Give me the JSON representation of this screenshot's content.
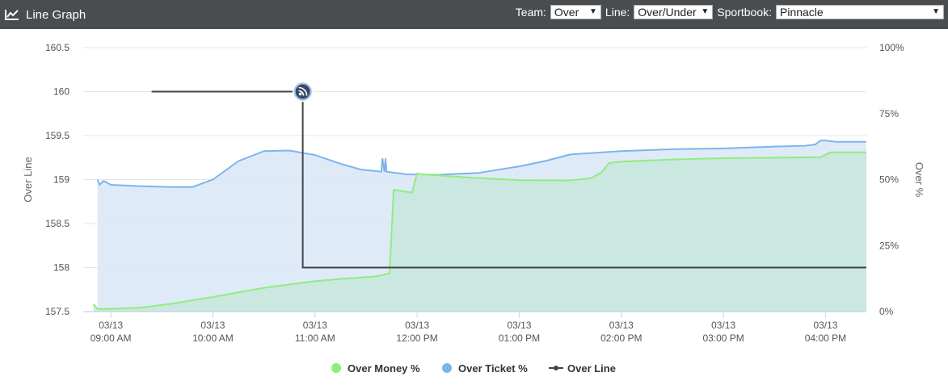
{
  "header": {
    "title": "Line Graph",
    "team_label": "Team:",
    "team_value": "Over",
    "line_label": "Line:",
    "line_value": "Over/Under",
    "sportsbook_label": "Sportbook:",
    "sportsbook_value": "Pinnacle"
  },
  "chart_data": {
    "type": "line",
    "left_axis": {
      "title": "Over Line",
      "min": 157.5,
      "max": 160.5,
      "ticks": [
        "157.5",
        "158",
        "158.5",
        "159",
        "159.5",
        "160",
        "160.5"
      ]
    },
    "right_axis": {
      "title": "Over %",
      "min": 0,
      "max": 100,
      "ticks": [
        "0%",
        "25%",
        "50%",
        "75%",
        "100%"
      ]
    },
    "x_axis": {
      "unit": "hours",
      "range": [
        8.73,
        16.4
      ],
      "ticks": [
        {
          "v": 9,
          "d": "03/13",
          "t": "09:00 AM"
        },
        {
          "v": 10,
          "d": "03/13",
          "t": "10:00 AM"
        },
        {
          "v": 11,
          "d": "03/13",
          "t": "11:00 AM"
        },
        {
          "v": 12,
          "d": "03/13",
          "t": "12:00 PM"
        },
        {
          "v": 13,
          "d": "03/13",
          "t": "01:00 PM"
        },
        {
          "v": 14,
          "d": "03/13",
          "t": "02:00 PM"
        },
        {
          "v": 15,
          "d": "03/13",
          "t": "03:00 PM"
        },
        {
          "v": 16,
          "d": "03/13",
          "t": "04:00 PM"
        }
      ]
    },
    "series": [
      {
        "name": "Over Ticket %",
        "axis": "right",
        "color": "#7cb5ec",
        "fill": "#dce8f8",
        "points": [
          [
            8.87,
            50
          ],
          [
            8.89,
            48
          ],
          [
            8.93,
            49.5
          ],
          [
            9.0,
            48
          ],
          [
            9.3,
            47.5
          ],
          [
            9.6,
            47.2
          ],
          [
            9.8,
            47.2
          ],
          [
            10.0,
            50
          ],
          [
            10.25,
            57
          ],
          [
            10.5,
            60.8
          ],
          [
            10.75,
            61
          ],
          [
            11.0,
            59.3
          ],
          [
            11.25,
            56
          ],
          [
            11.45,
            53.8
          ],
          [
            11.65,
            53
          ],
          [
            11.66,
            58
          ],
          [
            11.68,
            53
          ],
          [
            11.69,
            58
          ],
          [
            11.7,
            53
          ],
          [
            11.9,
            52
          ],
          [
            12.2,
            51.8
          ],
          [
            12.6,
            52.5
          ],
          [
            13.0,
            55
          ],
          [
            13.25,
            57
          ],
          [
            13.5,
            59.5
          ],
          [
            14.0,
            60.8
          ],
          [
            14.5,
            61.5
          ],
          [
            15.0,
            61.8
          ],
          [
            15.5,
            62.5
          ],
          [
            15.8,
            62.8
          ],
          [
            15.9,
            63.3
          ],
          [
            15.95,
            64.8
          ],
          [
            16.0,
            64.8
          ],
          [
            16.1,
            64.3
          ],
          [
            16.4,
            64.3
          ]
        ]
      },
      {
        "name": "Over Money %",
        "axis": "right",
        "color": "#90ed7d",
        "fill": "#c8e8dc",
        "points": [
          [
            8.83,
            2.8
          ],
          [
            8.87,
            1
          ],
          [
            9.0,
            1
          ],
          [
            9.3,
            1.5
          ],
          [
            9.6,
            3
          ],
          [
            10.0,
            5.5
          ],
          [
            10.5,
            9
          ],
          [
            11.0,
            11.5
          ],
          [
            11.3,
            12.5
          ],
          [
            11.6,
            13.3
          ],
          [
            11.73,
            14.5
          ],
          [
            11.77,
            46
          ],
          [
            11.8,
            46
          ],
          [
            11.95,
            45
          ],
          [
            12.0,
            52.3
          ],
          [
            12.05,
            52
          ],
          [
            12.5,
            50.8
          ],
          [
            13.0,
            49.8
          ],
          [
            13.5,
            49.7
          ],
          [
            13.7,
            50.5
          ],
          [
            13.8,
            52.5
          ],
          [
            13.88,
            56.3
          ],
          [
            14.0,
            56.8
          ],
          [
            14.5,
            57.6
          ],
          [
            15.0,
            58.1
          ],
          [
            15.5,
            58.3
          ],
          [
            15.95,
            58.5
          ],
          [
            16.05,
            60.3
          ],
          [
            16.4,
            60.3
          ]
        ]
      },
      {
        "name": "Over Line",
        "axis": "left",
        "color": "#434348",
        "points": [
          [
            9.4,
            160
          ],
          [
            10.88,
            160
          ],
          [
            10.88,
            158
          ],
          [
            16.4,
            158
          ]
        ],
        "marker_at": [
          10.88,
          160
        ],
        "marker_icon": "rss-icon"
      }
    ],
    "legend": [
      "Over Money %",
      "Over Ticket %",
      "Over Line"
    ],
    "legend_placement": "bottom-center",
    "grid": true
  }
}
